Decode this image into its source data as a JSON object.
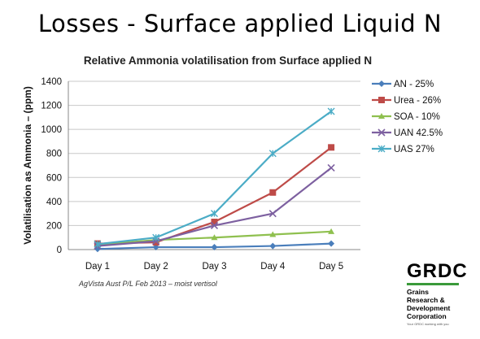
{
  "slide": {
    "title": "Losses - Surface applied Liquid N",
    "source": "AgVista Aust P/L  Feb 2013  – moist  vertisol"
  },
  "logo": {
    "word": "GRDC",
    "lines": [
      "Grains",
      "Research &",
      "Development",
      "Corporation"
    ],
    "tagline": "Your GRDC working with you",
    "accent_color": "#3a9a3a"
  },
  "chart_data": {
    "type": "line",
    "title": "Relative Ammonia volatilisation from Surface applied N",
    "xlabel": "",
    "ylabel": "Volatilisation as Ammonia – (ppm)",
    "categories": [
      "Day 1",
      "Day 2",
      "Day 3",
      "Day 4",
      "Day 5"
    ],
    "ylim": [
      0,
      1400
    ],
    "yticks": [
      0,
      200,
      400,
      600,
      800,
      1000,
      1200,
      1400
    ],
    "grid": true,
    "legend_position": "right",
    "series": [
      {
        "name": "AN - 25%",
        "color": "#4a7ebb",
        "marker": "diamond",
        "values": [
          5,
          20,
          20,
          30,
          50
        ]
      },
      {
        "name": "Urea - 26%",
        "color": "#be4b48",
        "marker": "square",
        "values": [
          50,
          60,
          230,
          475,
          850
        ]
      },
      {
        "name": "SOA - 10%",
        "color": "#8fc04f",
        "marker": "triangle",
        "values": [
          40,
          80,
          100,
          125,
          150
        ]
      },
      {
        "name": "UAN 42.5%",
        "color": "#7d60a0",
        "marker": "x",
        "values": [
          30,
          70,
          200,
          300,
          680
        ]
      },
      {
        "name": "UAS 27%",
        "color": "#4bacc6",
        "marker": "star",
        "values": [
          45,
          100,
          300,
          800,
          1150
        ]
      }
    ]
  }
}
